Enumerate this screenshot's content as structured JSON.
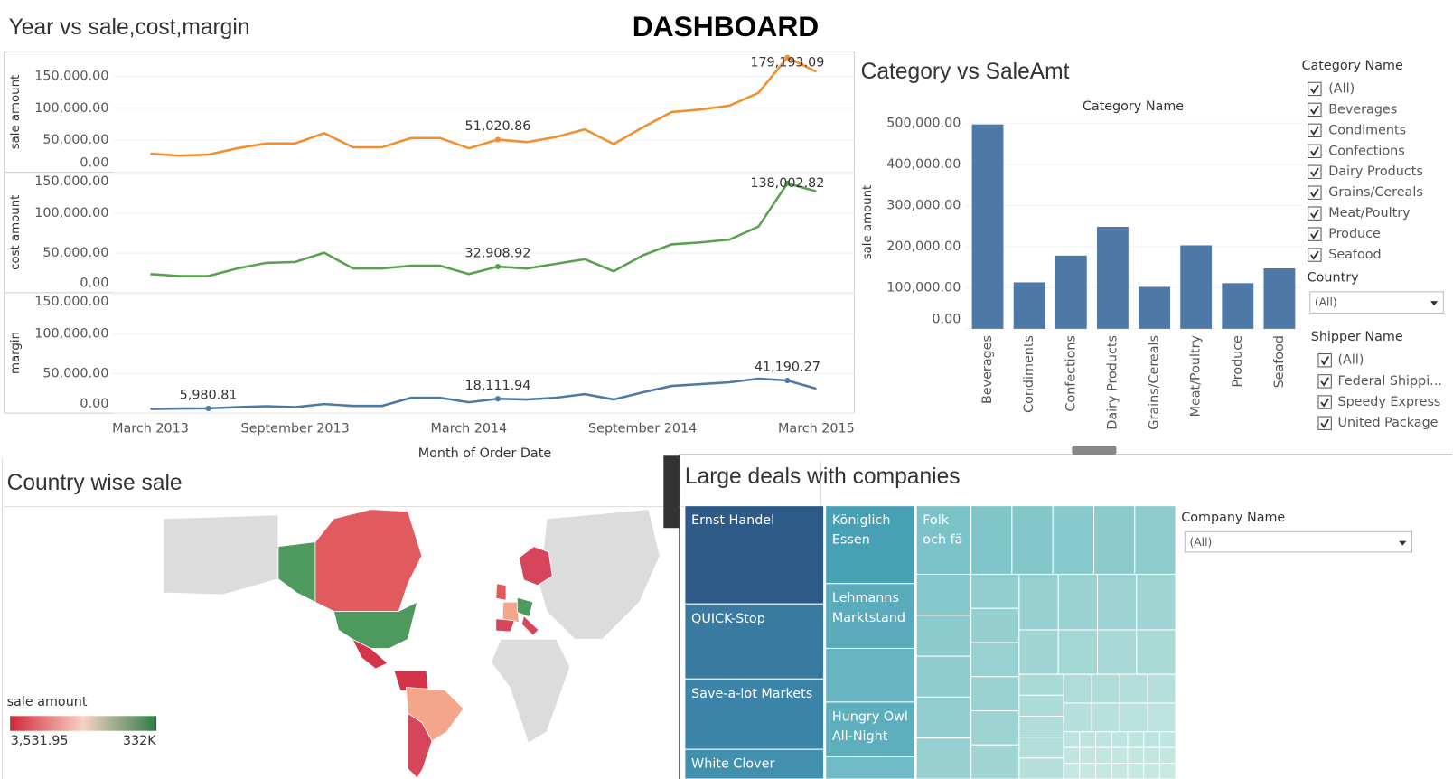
{
  "header": {
    "title": "DASHBOARD"
  },
  "chart_data": [
    {
      "type": "line",
      "title": "Year vs sale,cost,margin",
      "x_label": "Month of Order Date",
      "categories": [
        "March 2013",
        null,
        null,
        null,
        null,
        "September 2013",
        null,
        null,
        null,
        null,
        null,
        "March 2014",
        null,
        null,
        null,
        null,
        null,
        "September 2014",
        null,
        null,
        null,
        null,
        null,
        "March 2015"
      ],
      "panels": [
        {
          "y_label": "sale amount",
          "ylim": [
            0,
            188000
          ],
          "yticks": [
            {
              "value": 0,
              "label": "0.00"
            },
            {
              "value": 50000,
              "label": "50,000.00"
            },
            {
              "value": 100000,
              "label": "100,000.00"
            },
            {
              "value": 150000,
              "label": "150,000.00"
            }
          ],
          "series": [
            {
              "color": "#f28e2b",
              "values": [
                29000,
                26000,
                27500,
                37500,
                45000,
                45000,
                61000,
                39000,
                39000,
                53500,
                53500,
                37500,
                51020.86,
                47000,
                55000,
                67000,
                44000,
                70000,
                94000,
                98000,
                104000,
                124000,
                179193.09,
                157000
              ],
              "value_labels": [
                null,
                null,
                null,
                null,
                null,
                null,
                null,
                null,
                null,
                null,
                null,
                null,
                "51,020.86",
                null,
                null,
                null,
                null,
                null,
                null,
                null,
                null,
                null,
                "179,193.09",
                null
              ]
            }
          ]
        },
        {
          "y_label": "cost amount",
          "ylim": [
            0,
            152000
          ],
          "yticks": [
            {
              "value": 0,
              "label": "0.00"
            },
            {
              "value": 50000,
              "label": "50,000.00"
            },
            {
              "value": 100000,
              "label": "100,000.00"
            },
            {
              "value": 150000,
              "label": "150,000.00"
            }
          ],
          "series": [
            {
              "color": "#59a14f",
              "values": [
                23500,
                21000,
                21000,
                30500,
                37600,
                38800,
                50500,
                30500,
                30500,
                34000,
                34000,
                23500,
                32908.92,
                30500,
                36400,
                42300,
                27000,
                47000,
                61000,
                63500,
                67000,
                83400,
                138002.82,
                128000
              ],
              "value_labels": [
                null,
                null,
                null,
                null,
                null,
                null,
                null,
                null,
                null,
                null,
                null,
                null,
                "32,908.92",
                null,
                null,
                null,
                null,
                null,
                null,
                null,
                null,
                null,
                "138,002.82",
                null
              ]
            }
          ]
        },
        {
          "y_label": "margin",
          "ylim": [
            0,
            152000
          ],
          "yticks": [
            {
              "value": 0,
              "label": "0.00"
            },
            {
              "value": 50000,
              "label": "50,000.00"
            },
            {
              "value": 100000,
              "label": "100,000.00"
            },
            {
              "value": 150000,
              "label": "150,000.00"
            }
          ],
          "series": [
            {
              "color": "#4e79a7",
              "values": [
                5200,
                5800,
                5980.81,
                7500,
                8700,
                7500,
                11400,
                9100,
                9100,
                19400,
                19400,
                13700,
                18111.94,
                17200,
                19400,
                24000,
                17200,
                26300,
                34300,
                36600,
                38900,
                43500,
                41190.27,
                30900
              ],
              "value_labels": [
                null,
                null,
                "5,980.81",
                null,
                null,
                null,
                null,
                null,
                null,
                null,
                null,
                null,
                "18,111.94",
                null,
                null,
                null,
                null,
                null,
                null,
                null,
                null,
                null,
                "41,190.27",
                null
              ]
            }
          ]
        }
      ]
    },
    {
      "type": "bar",
      "title": "Category vs SaleAmt",
      "x_label": "Category Name",
      "y_label": "sale amount",
      "categories": [
        "Beverages",
        "Condiments",
        "Confections",
        "Dairy Products",
        "Grains/Cereals",
        "Meat/Poultry",
        "Produce",
        "Seafood"
      ],
      "values": [
        497000,
        113000,
        178000,
        248000,
        102000,
        203000,
        111000,
        147000
      ],
      "color": "#4e79a7",
      "ylim": [
        0,
        500000
      ],
      "yticks": [
        {
          "value": 0,
          "label": "0.00"
        },
        {
          "value": 100000,
          "label": "100,000.00"
        },
        {
          "value": 200000,
          "label": "200,000.00"
        },
        {
          "value": 300000,
          "label": "300,000.00"
        },
        {
          "value": 400000,
          "label": "400,000.00"
        },
        {
          "value": 500000,
          "label": "500,000.00"
        }
      ]
    },
    {
      "type": "map",
      "title": "Country wise sale",
      "legend": {
        "title": "sale amount",
        "min": {
          "value": 3531.95,
          "label": "3,531.95"
        },
        "max": {
          "value": 332000,
          "label": "332K"
        },
        "colors": [
          "#d3293c",
          "#f7d2c3",
          "#2f7d46"
        ]
      }
    },
    {
      "type": "treemap",
      "title": "Large deals with companies",
      "labels": [
        "Ernst Handel",
        "QUICK-Stop",
        "Save-a-lot Markets",
        "White Clover",
        "Königlich Essen",
        "Lehmanns Marktstand",
        "Hungry Owl All-Night",
        "Folk och fä"
      ]
    }
  ],
  "filters": {
    "category": {
      "title": "Category Name",
      "options": [
        "(All)",
        "Beverages",
        "Condiments",
        "Confections",
        "Dairy Products",
        "Grains/Cereals",
        "Meat/Poultry",
        "Produce",
        "Seafood"
      ]
    },
    "country": {
      "title": "Country",
      "value": "(All)"
    },
    "shipper": {
      "title": "Shipper Name",
      "options": [
        "(All)",
        "Federal Shippi...",
        "Speedy Express",
        "United Package"
      ]
    },
    "company": {
      "title": "Company Name",
      "value": "(All)"
    }
  }
}
